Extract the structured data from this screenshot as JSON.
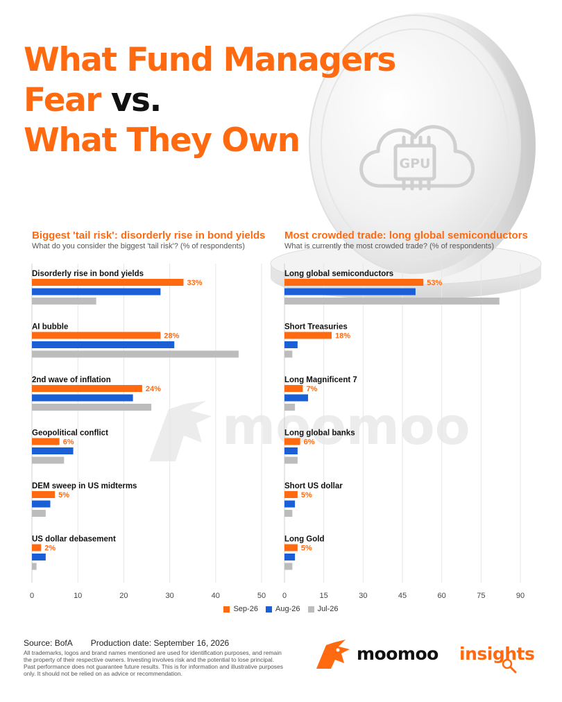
{
  "title": {
    "line1": "What Fund Managers",
    "line2_orange": "Fear",
    "line2_dark": "vs.",
    "line3": "What They Own"
  },
  "coin": {
    "chip_label": "GPU"
  },
  "watermark": "moomoo",
  "colors": {
    "sep": "#ff6a10",
    "aug": "#1a5fd6",
    "jul": "#bcbcbc",
    "accent": "#ff6a10"
  },
  "chart_data": [
    {
      "type": "bar",
      "orientation": "horizontal",
      "title": "Biggest 'tail risk': disorderly rise in bond yields",
      "subtitle": "What do you consider the biggest 'tail risk'? (% of respondents)",
      "categories": [
        "Disorderly rise in bond yields",
        "AI bubble",
        "2nd wave of inflation",
        "Geopolitical conflict",
        "DEM sweep in US midterms",
        "US dollar debasement"
      ],
      "series": [
        {
          "name": "Sep-26",
          "values": [
            33,
            28,
            24,
            6,
            5,
            2
          ]
        },
        {
          "name": "Aug-26",
          "values": [
            28,
            31,
            22,
            9,
            4,
            3
          ]
        },
        {
          "name": "Jul-26",
          "values": [
            14,
            45,
            26,
            7,
            3,
            1
          ]
        }
      ],
      "value_labels": [
        "33%",
        "28%",
        "24%",
        "6%",
        "5%",
        "2%"
      ],
      "xlim": [
        0,
        50
      ],
      "xticks": [
        0,
        10,
        20,
        30,
        40,
        50
      ],
      "grid": true
    },
    {
      "type": "bar",
      "orientation": "horizontal",
      "title": "Most crowded trade: long global semiconductors",
      "subtitle": "What is currently the most crowded trade? (% of respondents)",
      "categories": [
        "Long global semiconductors",
        "Short Treasuries",
        "Long Magnificent 7",
        "Long global banks",
        "Short US dollar",
        "Long Gold"
      ],
      "series": [
        {
          "name": "Sep-26",
          "values": [
            53,
            18,
            7,
            6,
            5,
            5
          ]
        },
        {
          "name": "Aug-26",
          "values": [
            50,
            5,
            9,
            5,
            4,
            4
          ]
        },
        {
          "name": "Jul-26",
          "values": [
            82,
            3,
            4,
            5,
            3,
            3
          ]
        }
      ],
      "value_labels": [
        "53%",
        "18%",
        "7%",
        "6%",
        "5%",
        "5%"
      ],
      "xlim": [
        0,
        90
      ],
      "xticks": [
        0,
        15,
        30,
        45,
        60,
        75,
        90
      ],
      "grid": true
    }
  ],
  "legend": {
    "items": [
      "Sep-26",
      "Aug-26",
      "Jul-26"
    ],
    "position": "bottom-center"
  },
  "footer": {
    "source": "Source: BofA",
    "production_date": "Production date: September 16, 2026",
    "disclaimer": "All trademarks, logos and brand names mentioned are used for identification purposes, and remain the property of their respective owners. Investing involves risk and the potential to lose principal. Past performance does not guarantee future results. This is for information and illustrative purposes only. It should not be relied on as advice or recommendation."
  },
  "brand": {
    "name": "moomoo",
    "insights": "insights"
  }
}
